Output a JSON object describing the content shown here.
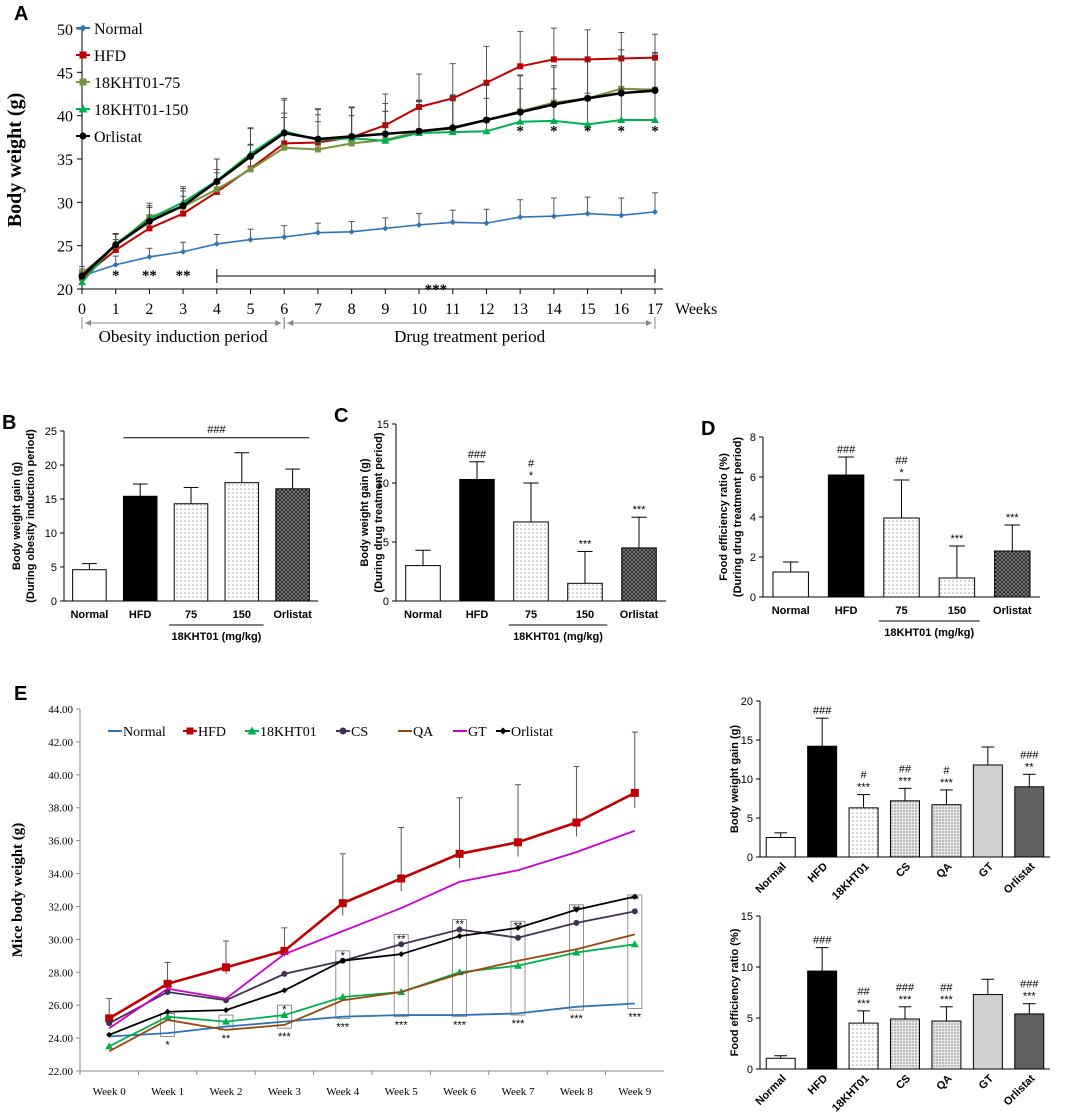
{
  "chart_data": [
    {
      "id": "A",
      "type": "line",
      "panel_label": "A",
      "ylabel": "Body weight (g)",
      "xlabel": "Weeks",
      "ylim": [
        20,
        50
      ],
      "yticks": [
        20,
        25,
        30,
        35,
        40,
        45,
        50
      ],
      "x": [
        0,
        1,
        2,
        3,
        4,
        5,
        6,
        7,
        8,
        9,
        10,
        11,
        12,
        13,
        14,
        15,
        16,
        17
      ],
      "series": [
        {
          "name": "Normal",
          "color": "#2e75b6",
          "marker": "diamond",
          "values": [
            21.5,
            22.8,
            23.7,
            24.3,
            25.2,
            25.7,
            26.0,
            26.5,
            26.6,
            27.0,
            27.4,
            27.7,
            27.6,
            28.3,
            28.4,
            28.7,
            28.5,
            28.9
          ],
          "err": [
            0.8,
            1.0,
            1.0,
            1.1,
            1.1,
            1.2,
            1.3,
            1.1,
            1.2,
            1.2,
            1.3,
            1.4,
            1.6,
            2.0,
            2.1,
            1.9,
            2.0,
            2.2
          ]
        },
        {
          "name": "HFD",
          "color": "#c00000",
          "marker": "square",
          "values": [
            21.3,
            24.5,
            27.0,
            28.7,
            31.2,
            33.9,
            36.8,
            36.9,
            37.5,
            38.9,
            41.0,
            42.0,
            43.8,
            45.7,
            46.5,
            46.5,
            46.6,
            46.7
          ],
          "err": [
            0.8,
            1.2,
            1.5,
            2.0,
            2.2,
            2.8,
            3.5,
            3.2,
            3.5,
            3.6,
            3.8,
            4.0,
            4.2,
            4.0,
            3.6,
            3.4,
            3.0,
            2.7
          ]
        },
        {
          "name": "18KHT01-75",
          "color": "#77933c",
          "marker": "square",
          "values": [
            21.8,
            25.0,
            28.3,
            29.5,
            31.5,
            33.8,
            36.3,
            36.1,
            36.8,
            37.2,
            38.2,
            38.5,
            39.5,
            40.5,
            41.5,
            42.0,
            43.1,
            43.0
          ],
          "err": [
            0.8,
            1.3,
            1.6,
            1.8,
            2.3,
            2.8,
            3.5,
            3.2,
            3.2,
            3.3,
            3.5,
            3.8,
            4.0,
            4.2,
            4.3,
            4.3,
            4.5,
            4.3
          ]
        },
        {
          "name": "18KHT01-150",
          "color": "#00b050",
          "marker": "triangle",
          "values": [
            20.8,
            25.2,
            28.1,
            30.0,
            32.5,
            35.6,
            38.2,
            37.2,
            37.4,
            37.1,
            38.0,
            38.1,
            38.2,
            39.3,
            39.4,
            39.0,
            39.5,
            39.5
          ],
          "err": [
            0.8,
            1.2,
            1.5,
            1.8,
            2.5,
            3.0,
            3.8,
            3.5,
            3.5,
            3.4,
            3.6,
            3.7,
            3.8,
            3.8,
            3.7,
            3.6,
            3.6,
            3.6
          ]
        },
        {
          "name": "Orlistat",
          "color": "#000000",
          "marker": "circle",
          "values": [
            21.5,
            25.1,
            27.8,
            29.6,
            32.4,
            35.3,
            38.0,
            37.3,
            37.6,
            37.9,
            38.2,
            38.6,
            39.5,
            40.4,
            41.3,
            42.0,
            42.6,
            42.9
          ],
          "err": [
            0.8,
            1.3,
            1.6,
            2.0,
            2.6,
            3.2,
            3.8,
            3.5,
            3.4,
            3.5,
            3.6,
            3.8,
            4.0,
            4.2,
            4.3,
            4.3,
            4.3,
            4.3
          ]
        }
      ],
      "sig_normal": [
        {
          "x": 1,
          "label": "*"
        },
        {
          "x": 2,
          "label": "**"
        },
        {
          "x": 3,
          "label": "**"
        }
      ],
      "sig_bracket": {
        "from": 4,
        "to": 17,
        "label": "***"
      },
      "sig_150": [
        {
          "x": 13,
          "label": "*"
        },
        {
          "x": 14,
          "label": "*"
        },
        {
          "x": 15,
          "label": "*"
        },
        {
          "x": 16,
          "label": "*"
        },
        {
          "x": 17,
          "label": "*"
        }
      ],
      "periods": [
        {
          "label": "Obesity induction period",
          "from": 0,
          "to": 6
        },
        {
          "label": "Drug treatment period",
          "from": 6,
          "to": 17
        }
      ]
    },
    {
      "id": "B",
      "type": "bar",
      "panel_label": "B",
      "ylabel": [
        "Body weight gain (g)",
        "(During obesity induction period)"
      ],
      "ylim": [
        0,
        25
      ],
      "yticks": [
        0,
        5,
        10,
        15,
        20,
        25
      ],
      "categories": [
        "Normal",
        "HFD",
        "75",
        "150",
        "Orlistat"
      ],
      "values": [
        4.6,
        15.4,
        14.3,
        17.4,
        16.5
      ],
      "err": [
        0.9,
        1.8,
        2.4,
        4.4,
        2.9
      ],
      "top_bracket": {
        "label": "###",
        "from": 1,
        "to": 4
      },
      "group_label": "18KHT01 (mg/kg)",
      "group_range": [
        2,
        3
      ],
      "annotations": [
        [],
        [],
        [],
        [],
        []
      ]
    },
    {
      "id": "C",
      "type": "bar",
      "panel_label": "C",
      "ylabel": [
        "Body weight gain (g)",
        "(During drug treatment period)"
      ],
      "ylim": [
        0,
        15
      ],
      "yticks": [
        0,
        5,
        10,
        15
      ],
      "categories": [
        "Normal",
        "HFD",
        "75",
        "150",
        "Orlistat"
      ],
      "values": [
        3.0,
        10.3,
        6.7,
        1.5,
        4.5
      ],
      "err": [
        1.3,
        1.5,
        3.3,
        2.7,
        2.6
      ],
      "group_label": "18KHT01 (mg/kg)",
      "group_range": [
        2,
        3
      ],
      "annotations": [
        [],
        [
          "###"
        ],
        [
          "#",
          "*"
        ],
        [
          "***"
        ],
        [
          "***"
        ]
      ]
    },
    {
      "id": "D",
      "type": "bar",
      "panel_label": "D",
      "ylabel": [
        "Food efficiency ratio (%)",
        "(During drug treatment period)"
      ],
      "ylim": [
        0,
        8
      ],
      "yticks": [
        0,
        2,
        4,
        6,
        8
      ],
      "categories": [
        "Normal",
        "HFD",
        "75",
        "150",
        "Orlistat"
      ],
      "values": [
        1.25,
        6.1,
        3.95,
        0.95,
        2.3
      ],
      "err": [
        0.5,
        0.9,
        1.9,
        1.6,
        1.3
      ],
      "group_label": "18KHT01 (mg/kg)",
      "group_range": [
        2,
        3
      ],
      "annotations": [
        [],
        [
          "###"
        ],
        [
          "##",
          "*"
        ],
        [
          "***"
        ],
        [
          "***"
        ]
      ]
    },
    {
      "id": "E",
      "type": "line",
      "panel_label": "E",
      "ylabel": "Mice body weight (g)",
      "ylim": [
        22,
        44
      ],
      "yticks": [
        "22.00",
        "24.00",
        "26.00",
        "28.00",
        "30.00",
        "32.00",
        "34.00",
        "36.00",
        "38.00",
        "40.00",
        "42.00",
        "44.00"
      ],
      "categories": [
        "Week 0",
        "Week 1",
        "Week 2",
        "Week 3",
        "Week 4",
        "Week 5",
        "Week 6",
        "Week 7",
        "Week 8",
        "Week 9"
      ],
      "series": [
        {
          "name": "Normal",
          "color": "#2e75b6",
          "marker": "none",
          "values": [
            24.1,
            24.3,
            24.7,
            25.0,
            25.3,
            25.4,
            25.4,
            25.5,
            25.9,
            26.1
          ]
        },
        {
          "name": "HFD",
          "color": "#c00000",
          "marker": "square",
          "values": [
            25.2,
            27.3,
            28.3,
            29.3,
            32.2,
            33.7,
            35.2,
            35.9,
            37.1,
            38.9
          ],
          "err": [
            1.2,
            1.3,
            1.6,
            1.4,
            3.0,
            3.1,
            3.4,
            3.5,
            3.4,
            3.7
          ]
        },
        {
          "name": "18KHT01",
          "color": "#00b050",
          "marker": "triangle",
          "values": [
            23.5,
            25.3,
            25.0,
            25.4,
            26.5,
            26.8,
            28.0,
            28.4,
            29.2,
            29.7
          ]
        },
        {
          "name": "CS",
          "color": "#403151",
          "marker": "circle",
          "values": [
            24.9,
            26.8,
            26.3,
            27.9,
            28.7,
            29.7,
            30.6,
            30.1,
            31.0,
            31.7
          ]
        },
        {
          "name": "QA",
          "color": "#984807",
          "marker": "none",
          "values": [
            23.2,
            25.1,
            24.5,
            24.8,
            26.3,
            26.8,
            27.9,
            28.7,
            29.4,
            30.3
          ]
        },
        {
          "name": "GT",
          "color": "#cc00cc",
          "marker": "none",
          "values": [
            24.6,
            27.0,
            26.4,
            29.1,
            30.5,
            31.9,
            33.5,
            34.2,
            35.3,
            36.6
          ]
        },
        {
          "name": "Orlistat",
          "color": "#000000",
          "marker": "diamond",
          "values": [
            24.2,
            25.6,
            25.7,
            26.9,
            28.7,
            29.1,
            30.2,
            30.7,
            31.8,
            32.6
          ]
        }
      ],
      "boxes": [
        {
          "x": 1,
          "lo": 24.1,
          "hi": 25.5,
          "stars": [
            "*"
          ]
        },
        {
          "x": 2,
          "lo": 24.5,
          "hi": 25.4,
          "stars": [
            "**"
          ]
        },
        {
          "x": 3,
          "lo": 24.6,
          "hi": 26.0,
          "stars": [
            "*",
            "***"
          ]
        },
        {
          "x": 4,
          "lo": 25.2,
          "hi": 29.3,
          "stars": [
            "*",
            "***"
          ]
        },
        {
          "x": 5,
          "lo": 25.3,
          "hi": 30.3,
          "stars": [
            "**",
            "***"
          ]
        },
        {
          "x": 6,
          "lo": 25.3,
          "hi": 31.2,
          "stars": [
            "**",
            "***"
          ]
        },
        {
          "x": 7,
          "lo": 25.4,
          "hi": 31.1,
          "stars": [
            "**",
            "***"
          ]
        },
        {
          "x": 8,
          "lo": 25.7,
          "hi": 32.1,
          "stars": [
            "**",
            "***"
          ]
        },
        {
          "x": 9,
          "lo": 25.8,
          "hi": 32.7,
          "stars": [
            "**",
            "***"
          ]
        }
      ]
    },
    {
      "id": "E2",
      "type": "bar",
      "ylabel": [
        "Body weight gain (g)"
      ],
      "ylim": [
        0,
        20
      ],
      "yticks": [
        0,
        5,
        10,
        15,
        20
      ],
      "categories": [
        "Normal",
        "HFD",
        "18KHT01",
        "CS",
        "QA",
        "GT",
        "Orlistat"
      ],
      "values": [
        2.5,
        14.2,
        6.3,
        7.2,
        6.7,
        11.8,
        9.0
      ],
      "err": [
        0.6,
        3.6,
        1.7,
        1.6,
        1.9,
        2.3,
        1.6
      ],
      "annotations": [
        [],
        [
          "###"
        ],
        [
          "#",
          "***"
        ],
        [
          "##",
          "***"
        ],
        [
          "#",
          "***"
        ],
        [],
        [
          "###",
          "**"
        ]
      ]
    },
    {
      "id": "E3",
      "type": "bar",
      "ylabel": [
        "Food efficiency ratio (%)"
      ],
      "ylim": [
        0,
        15
      ],
      "yticks": [
        0,
        5,
        10,
        15
      ],
      "categories": [
        "Normal",
        "HFD",
        "18KHT01",
        "CS",
        "QA",
        "GT",
        "Orlistat"
      ],
      "values": [
        1.05,
        9.6,
        4.5,
        4.9,
        4.7,
        7.3,
        5.4
      ],
      "err": [
        0.25,
        2.3,
        1.2,
        1.2,
        1.4,
        1.5,
        1.0
      ],
      "annotations": [
        [],
        [
          "###"
        ],
        [
          "##",
          "***"
        ],
        [
          "###",
          "***"
        ],
        [
          "##",
          "***"
        ],
        [],
        [
          "###",
          "***"
        ]
      ]
    }
  ]
}
